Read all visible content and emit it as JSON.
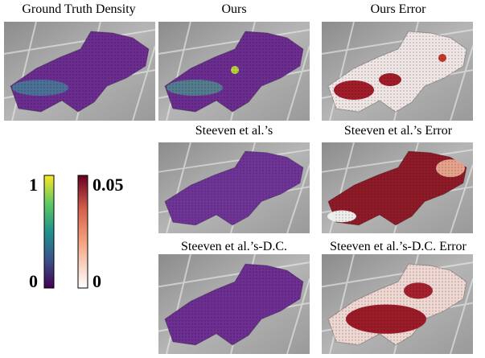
{
  "panels": [
    {
      "title": "Ground Truth Density"
    },
    {
      "title": "Ours"
    },
    {
      "title": "Ours Error"
    },
    {
      "title": "Steeven et al.’s"
    },
    {
      "title": "Steeven et al.’s Error"
    },
    {
      "title": "Steeven et al.’s-D.C."
    },
    {
      "title": "Steeven et al.’s-D.C. Error"
    }
  ],
  "colorbars": [
    {
      "top_label": "1",
      "bottom_label": "0"
    },
    {
      "top_label": "0.05",
      "bottom_label": "0"
    }
  ]
}
